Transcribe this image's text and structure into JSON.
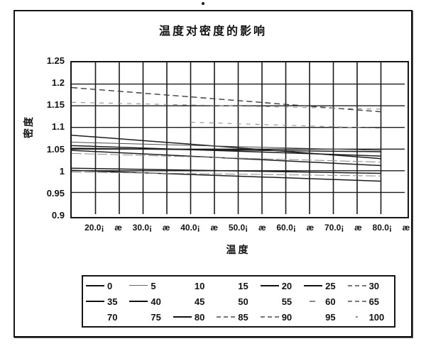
{
  "artifact": {
    "dot": "."
  },
  "chart_data": {
    "type": "line",
    "title": "温度对密度的影响",
    "xlabel": "温度",
    "ylabel": "密度",
    "ylim": [
      0.9,
      1.25
    ],
    "y_step": 0.05,
    "y_tick_labels": [
      "1.25",
      "1.2",
      "1.15",
      "1.1",
      "1.05",
      "1",
      "0.95",
      "0.9"
    ],
    "x_tick_labels": [
      "20.0¡",
      "æ",
      "30.0¡",
      "æ",
      "40.0¡",
      "æ",
      "50.0¡",
      "æ",
      "60.0¡",
      "æ",
      "70.0¡",
      "æ",
      "80.0¡",
      "æ"
    ],
    "x_range_units": [
      15,
      85
    ],
    "x_columns": 14,
    "grid": "on",
    "legend_position": "bottom",
    "series_names": [
      "0",
      "5",
      "10",
      "15",
      "20",
      "25",
      "30",
      "35",
      "40",
      "45",
      "50",
      "55",
      "60",
      "65",
      "70",
      "75",
      "80",
      "85",
      "90",
      "95",
      "100"
    ],
    "legend_entries": [
      {
        "label": "0",
        "swatch": "solid"
      },
      {
        "label": "5",
        "swatch": "thin"
      },
      {
        "label": "10",
        "swatch": "none"
      },
      {
        "label": "15",
        "swatch": "none"
      },
      {
        "label": "20",
        "swatch": "solid"
      },
      {
        "label": "25",
        "swatch": "solid"
      },
      {
        "label": "30",
        "swatch": "dash"
      },
      {
        "label": "35",
        "swatch": "solid"
      },
      {
        "label": "40",
        "swatch": "solid"
      },
      {
        "label": "45",
        "swatch": "none"
      },
      {
        "label": "50",
        "swatch": "none"
      },
      {
        "label": "55",
        "swatch": "none"
      },
      {
        "label": "60",
        "swatch": "tick"
      },
      {
        "label": "65",
        "swatch": "dash"
      },
      {
        "label": "70",
        "swatch": "none"
      },
      {
        "label": "75",
        "swatch": "none"
      },
      {
        "label": "80",
        "swatch": "solid"
      },
      {
        "label": "85",
        "swatch": "dash"
      },
      {
        "label": "90",
        "swatch": "dash"
      },
      {
        "label": "95",
        "swatch": "none"
      },
      {
        "label": "100",
        "swatch": "dot"
      }
    ],
    "visible_lines": [
      {
        "points": [
          [
            15,
            1.192
          ],
          [
            80,
            1.136
          ]
        ],
        "style": "dashed-dark"
      },
      {
        "points": [
          [
            15,
            1.158
          ],
          [
            80,
            1.142
          ]
        ],
        "style": "dashed-faint"
      },
      {
        "points": [
          [
            40,
            1.112
          ],
          [
            80,
            1.098
          ]
        ],
        "style": "dashed-faint"
      },
      {
        "points": [
          [
            15,
            1.082
          ],
          [
            80,
            1.028
          ]
        ],
        "style": "solid"
      },
      {
        "points": [
          [
            15,
            1.066
          ],
          [
            80,
            1.047
          ]
        ],
        "style": "solid-thin"
      },
      {
        "points": [
          [
            15,
            1.058
          ],
          [
            80,
            1.034
          ]
        ],
        "style": "solid"
      },
      {
        "points": [
          [
            15,
            1.052
          ],
          [
            80,
            1.044
          ]
        ],
        "style": "solid"
      },
      {
        "points": [
          [
            15,
            1.047
          ],
          [
            80,
            1.012
          ]
        ],
        "style": "solid"
      },
      {
        "points": [
          [
            15,
            1.04
          ],
          [
            80,
            1.02
          ]
        ],
        "style": "faint"
      },
      {
        "points": [
          [
            15,
            1.006
          ],
          [
            80,
            0.994
          ]
        ],
        "style": "solid"
      },
      {
        "points": [
          [
            15,
            1.001
          ],
          [
            80,
            0.976
          ]
        ],
        "style": "solid"
      },
      {
        "points": [
          [
            15,
            0.997
          ],
          [
            80,
            0.988
          ]
        ],
        "style": "faint"
      }
    ]
  }
}
